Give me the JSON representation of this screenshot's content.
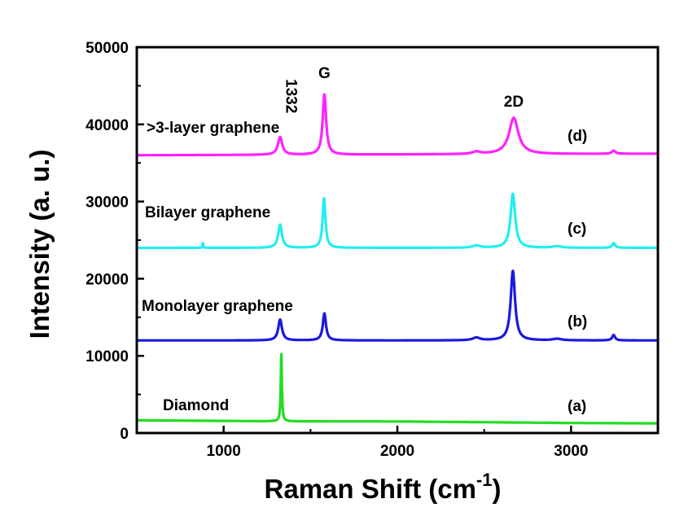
{
  "chart_data": {
    "type": "line",
    "xlabel": "Raman Shift (cm",
    "xlabel_sup": "-1",
    "xlabel_close": ")",
    "ylabel": "Intensity (a. u.)",
    "xlim": [
      500,
      3500
    ],
    "ylim": [
      0,
      50000
    ],
    "xticks": [
      1000,
      2000,
      3000
    ],
    "xtick_labels": [
      "1000",
      "2000",
      "3000"
    ],
    "yticks": [
      0,
      10000,
      20000,
      30000,
      40000,
      50000
    ],
    "ytick_labels": [
      "0",
      "10000",
      "20000",
      "30000",
      "40000",
      "50000"
    ],
    "grid": false,
    "series": [
      {
        "name": "Diamond",
        "tag": "(a)",
        "color": "#22dd22",
        "baseline": [
          [
            500,
            1650
          ],
          [
            1300,
            1520
          ],
          [
            2000,
            1500
          ],
          [
            3000,
            1300
          ],
          [
            3500,
            1250
          ]
        ],
        "peaks": [
          {
            "center": 1332,
            "height": 8700,
            "width": 4
          }
        ]
      },
      {
        "name": "Monolayer graphene",
        "tag": "(b)",
        "color": "#1a1add",
        "baseline": [
          [
            500,
            12000
          ],
          [
            3500,
            12000
          ]
        ],
        "peaks": [
          {
            "center": 1325,
            "height": 2700,
            "width": 13
          },
          {
            "center": 1580,
            "height": 3500,
            "width": 11
          },
          {
            "center": 2455,
            "height": 350,
            "width": 25
          },
          {
            "center": 2665,
            "height": 9000,
            "width": 15
          },
          {
            "center": 2920,
            "height": 200,
            "width": 30
          },
          {
            "center": 3245,
            "height": 700,
            "width": 10
          }
        ]
      },
      {
        "name": "Bilayer graphene",
        "tag": "(c)",
        "color": "#22eeee",
        "baseline": [
          [
            500,
            24000
          ],
          [
            3500,
            24000
          ]
        ],
        "peaks": [
          {
            "center": 880,
            "height": 600,
            "width": 3
          },
          {
            "center": 1325,
            "height": 3000,
            "width": 13
          },
          {
            "center": 1578,
            "height": 6400,
            "width": 10
          },
          {
            "center": 2455,
            "height": 300,
            "width": 25
          },
          {
            "center": 2665,
            "height": 7000,
            "width": 16
          },
          {
            "center": 2920,
            "height": 200,
            "width": 30
          },
          {
            "center": 3245,
            "height": 600,
            "width": 10
          }
        ]
      },
      {
        "name": ">3-layer graphene",
        "tag": "(d)",
        "color": "#ff22ff",
        "baseline": [
          [
            500,
            36000
          ],
          [
            3500,
            36200
          ]
        ],
        "peaks": [
          {
            "center": 1325,
            "height": 2300,
            "width": 15
          },
          {
            "center": 1580,
            "height": 7800,
            "width": 12
          },
          {
            "center": 2455,
            "height": 300,
            "width": 25
          },
          {
            "center": 2670,
            "height": 4700,
            "width": 32
          },
          {
            "center": 3245,
            "height": 400,
            "width": 12
          }
        ]
      }
    ],
    "peak_labels": [
      {
        "text": "1332",
        "x": 1332,
        "y": 44500,
        "rotate": true
      },
      {
        "text": "G",
        "x": 1580,
        "y": 46000
      },
      {
        "text": "2D",
        "x": 2670,
        "y": 42300
      }
    ]
  }
}
